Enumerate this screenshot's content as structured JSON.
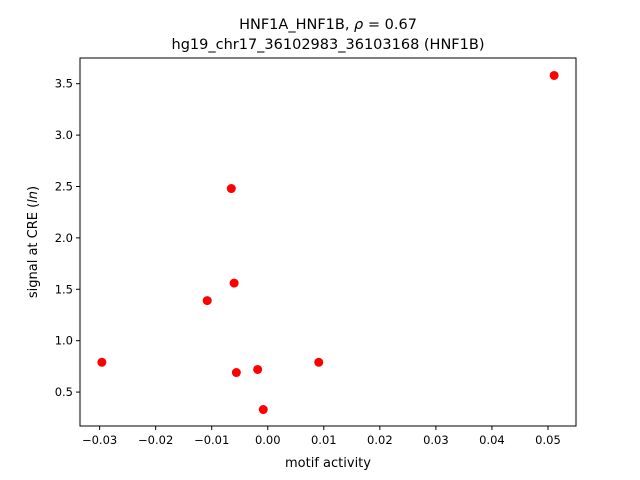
{
  "chart_data": {
    "type": "scatter",
    "title_line1_prefix": "HNF1A_HNF1B, ",
    "title_rho_symbol": "ρ",
    "title_rho_value": " = 0.67",
    "title_line2": "hg19_chr17_36102983_36103168 (HNF1B)",
    "xlabel": "motif activity",
    "ylabel_prefix": "signal at CRE (",
    "ylabel_italic": "ln",
    "ylabel_suffix": ")",
    "xlim": [
      -0.0335,
      0.055
    ],
    "ylim": [
      0.17,
      3.75
    ],
    "xticks": [
      -0.03,
      -0.02,
      -0.01,
      0.0,
      0.01,
      0.02,
      0.03,
      0.04,
      0.05
    ],
    "xtick_labels": [
      "−0.03",
      "−0.02",
      "−0.01",
      "0.00",
      "0.01",
      "0.02",
      "0.03",
      "0.04",
      "0.05"
    ],
    "yticks": [
      0.5,
      1.0,
      1.5,
      2.0,
      2.5,
      3.0,
      3.5
    ],
    "ytick_labels": [
      "0.5",
      "1.0",
      "1.5",
      "2.0",
      "2.5",
      "3.0",
      "3.5"
    ],
    "grid": false,
    "legend": "none",
    "marker_color": "#ff0000",
    "points": [
      {
        "x": -0.0296,
        "y": 0.79
      },
      {
        "x": -0.0108,
        "y": 1.39
      },
      {
        "x": -0.0065,
        "y": 2.48
      },
      {
        "x": -0.006,
        "y": 1.56
      },
      {
        "x": -0.0056,
        "y": 0.69
      },
      {
        "x": -0.0018,
        "y": 0.72
      },
      {
        "x": -0.0008,
        "y": 0.33
      },
      {
        "x": 0.0091,
        "y": 0.79
      },
      {
        "x": 0.0511,
        "y": 3.58
      }
    ]
  }
}
